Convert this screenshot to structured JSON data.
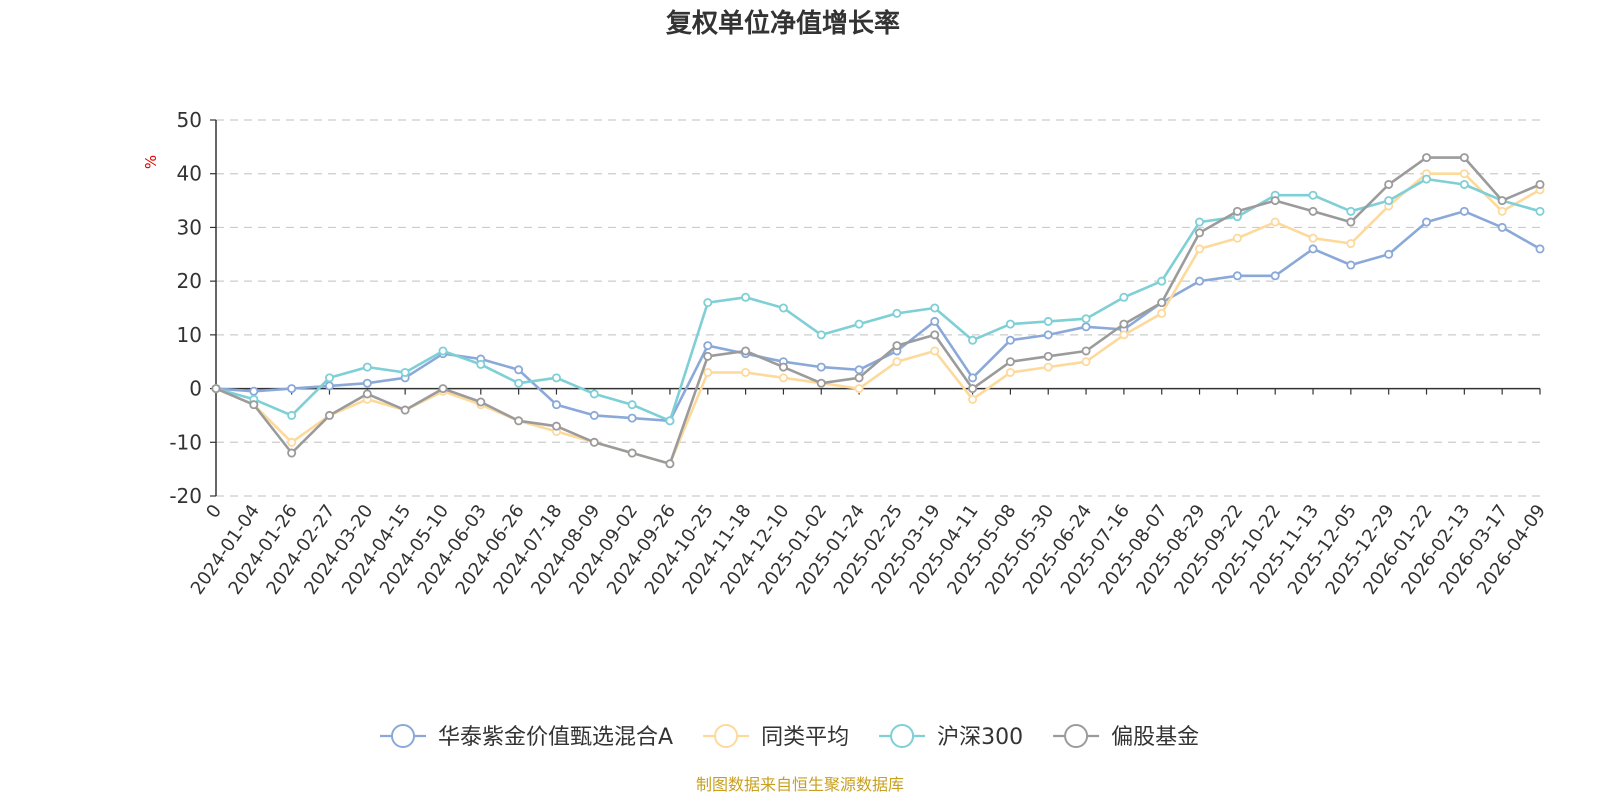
{
  "chart_data": {
    "type": "line",
    "title": "复权单位净值增长率",
    "ylabel": "%",
    "ylim": [
      -20,
      50
    ],
    "yticks": [
      "50",
      "40",
      "30",
      "20",
      "10",
      "0",
      "-10",
      "-20"
    ],
    "grid": true,
    "legend_position": "bottom",
    "x_tick_labels": [
      "0",
      "2024-01-04",
      "2024-01-26",
      "2024-02-27",
      "2024-03-20",
      "2024-04-15",
      "2024-05-10",
      "2024-06-03",
      "2024-06-26",
      "2024-07-18",
      "2024-08-09",
      "2024-09-02",
      "2024-09-26",
      "2024-10-25",
      "2024-11-18",
      "2024-12-10",
      "2025-01-02",
      "2025-01-24",
      "2025-02-25",
      "2025-03-19",
      "2025-04-11",
      "2025-05-08",
      "2025-05-30",
      "2025-06-24",
      "2025-07-16",
      "2025-08-07",
      "2025-08-29",
      "2025-09-22",
      "2025-10-22",
      "2025-11-13",
      "2025-12-05",
      "2025-12-29",
      "2026-01-22",
      "2026-02-13",
      "2026-03-17",
      "2026-04-09"
    ],
    "series": [
      {
        "name": "华泰紫金价值甄选混合A",
        "color": "#8aa9d9",
        "values": [
          0,
          -0.5,
          0,
          0.5,
          1,
          2,
          6.5,
          5.5,
          3.5,
          -3,
          -5,
          -5.5,
          -6,
          8,
          6.5,
          5,
          4,
          3.5,
          7,
          12.5,
          2,
          9,
          10,
          11.5,
          11,
          16,
          20,
          21,
          21,
          26,
          23,
          25,
          31,
          33,
          30,
          26
        ]
      },
      {
        "name": "同类平均",
        "color": "#fdd99b",
        "values": [
          0,
          -3,
          -10,
          -5,
          -2,
          -4,
          -0.5,
          -3,
          -6,
          -8,
          -10,
          -12,
          -14,
          3,
          3,
          2,
          1,
          0,
          5,
          7,
          -2,
          3,
          4,
          5,
          10,
          14,
          26,
          28,
          31,
          28,
          27,
          34,
          40,
          40,
          33,
          37
        ]
      },
      {
        "name": "沪深300",
        "color": "#7ecfd6",
        "values": [
          0,
          -2,
          -5,
          2,
          4,
          3,
          7,
          4.5,
          1,
          2,
          -1,
          -3,
          -6,
          16,
          17,
          15,
          10,
          12,
          14,
          15,
          9,
          12,
          12.5,
          13,
          17,
          20,
          31,
          32,
          36,
          36,
          33,
          35,
          39,
          38,
          35,
          33
        ]
      },
      {
        "name": "偏股基金",
        "color": "#9b9b9b",
        "values": [
          0,
          -3,
          -12,
          -5,
          -1,
          -4,
          0,
          -2.5,
          -6,
          -7,
          -10,
          -12,
          -14,
          6,
          7,
          4,
          1,
          2,
          8,
          10,
          0,
          5,
          6,
          7,
          12,
          16,
          29,
          33,
          35,
          33,
          31,
          38,
          43,
          43,
          35,
          38
        ]
      }
    ]
  },
  "source_note": "制图数据来自恒生聚源数据库"
}
